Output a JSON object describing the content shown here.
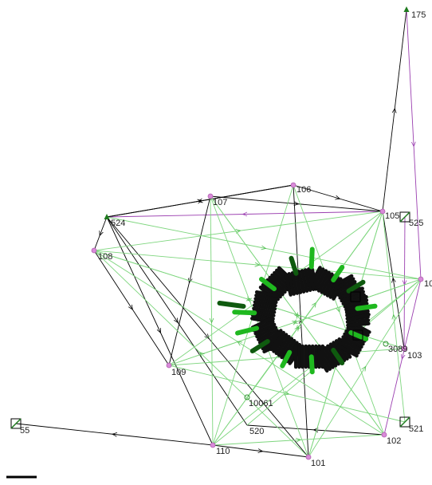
{
  "colors": {
    "background": "#ffffff",
    "edge_black": "#000000",
    "edge_green": "#7ed67e",
    "edge_purple": "#9b3fb0",
    "node_pink": "#d98ad9",
    "node_green": "#1e7a1e",
    "arrow_green": "#1fb81f",
    "arrow_dark_green": "#0f5a0f",
    "cluster_black": "#111111",
    "ring_green": "#2f8f2f"
  },
  "nodes": [
    {
      "id": "n175",
      "label": "175",
      "kind": "green"
    },
    {
      "id": "n106",
      "label": "106",
      "kind": "pink"
    },
    {
      "id": "n107",
      "label": "107",
      "kind": "pink"
    },
    {
      "id": "n105",
      "label": "105",
      "kind": "pink"
    },
    {
      "id": "n525",
      "label": "525",
      "kind": "box"
    },
    {
      "id": "n524",
      "label": "524",
      "kind": "green"
    },
    {
      "id": "n108",
      "label": "108",
      "kind": "pink"
    },
    {
      "id": "n10",
      "label": "10",
      "kind": "pink"
    },
    {
      "id": "n103",
      "label": "103",
      "kind": "pink"
    },
    {
      "id": "n3089",
      "label": "3089",
      "kind": "ring"
    },
    {
      "id": "n109",
      "label": "109",
      "kind": "pink"
    },
    {
      "id": "n10061",
      "label": "10061",
      "kind": "ring"
    },
    {
      "id": "n520",
      "label": "520",
      "kind": "plain"
    },
    {
      "id": "n110",
      "label": "110",
      "kind": "pink"
    },
    {
      "id": "n101",
      "label": "101",
      "kind": "pink"
    },
    {
      "id": "n102",
      "label": "102",
      "kind": "pink"
    },
    {
      "id": "n521",
      "label": "521",
      "kind": "box"
    },
    {
      "id": "n55",
      "label": "55",
      "kind": "box"
    }
  ],
  "edges": [
    {
      "from": "n524",
      "to": "n106",
      "color": "black"
    },
    {
      "from": "n106",
      "to": "n105",
      "color": "black"
    },
    {
      "from": "n105",
      "to": "n175",
      "color": "black"
    },
    {
      "from": "n175",
      "to": "n10",
      "color": "purple"
    },
    {
      "from": "n10",
      "to": "n102",
      "color": "purple"
    },
    {
      "from": "n525",
      "to": "n103",
      "color": "purple"
    },
    {
      "from": "n105",
      "to": "n524",
      "color": "purple"
    },
    {
      "from": "n524",
      "to": "n108",
      "color": "black"
    },
    {
      "from": "n108",
      "to": "n109",
      "color": "black"
    },
    {
      "from": "n524",
      "to": "n520",
      "color": "black"
    },
    {
      "from": "n524",
      "to": "n110",
      "color": "black"
    },
    {
      "from": "n524",
      "to": "n101",
      "color": "black"
    },
    {
      "from": "n110",
      "to": "n55",
      "color": "black"
    },
    {
      "from": "n110",
      "to": "n101",
      "color": "black"
    },
    {
      "from": "n101",
      "to": "n106",
      "color": "black"
    },
    {
      "from": "n106",
      "to": "n524",
      "color": "black"
    },
    {
      "from": "n107",
      "to": "n109",
      "color": "black"
    },
    {
      "from": "n103",
      "to": "n105",
      "color": "black"
    },
    {
      "from": "n102",
      "to": "n520",
      "color": "black"
    },
    {
      "from": "n107",
      "to": "n105",
      "color": "black"
    },
    {
      "from": "n108",
      "to": "n10",
      "color": "green"
    },
    {
      "from": "n108",
      "to": "n105",
      "color": "green"
    },
    {
      "from": "n108",
      "to": "n103",
      "color": "green"
    },
    {
      "from": "n107",
      "to": "n102",
      "color": "green"
    },
    {
      "from": "n107",
      "to": "n110",
      "color": "green"
    },
    {
      "from": "n107",
      "to": "n101",
      "color": "green"
    },
    {
      "from": "n106",
      "to": "n110",
      "color": "green"
    },
    {
      "from": "n106",
      "to": "n102",
      "color": "green"
    },
    {
      "from": "n105",
      "to": "n110",
      "color": "green"
    },
    {
      "from": "n105",
      "to": "n109",
      "color": "green"
    },
    {
      "from": "n105",
      "to": "n101",
      "color": "green"
    },
    {
      "from": "n10",
      "to": "n109",
      "color": "green"
    },
    {
      "from": "n10",
      "to": "n110",
      "color": "green"
    },
    {
      "from": "n103",
      "to": "n108",
      "color": "green"
    },
    {
      "from": "n103",
      "to": "n109",
      "color": "green"
    },
    {
      "from": "n109",
      "to": "n521",
      "color": "green"
    },
    {
      "from": "n109",
      "to": "n10",
      "color": "green"
    },
    {
      "from": "n110",
      "to": "n102",
      "color": "green"
    },
    {
      "from": "n101",
      "to": "n108",
      "color": "green"
    },
    {
      "from": "n101",
      "to": "n10",
      "color": "green"
    },
    {
      "from": "n102",
      "to": "n108",
      "color": "green"
    },
    {
      "from": "n102",
      "to": "n107",
      "color": "green"
    },
    {
      "from": "n524",
      "to": "n10",
      "color": "green"
    },
    {
      "from": "n521",
      "to": "n105",
      "color": "green"
    },
    {
      "from": "n10061",
      "to": "n105",
      "color": "green"
    },
    {
      "from": "n101",
      "to": "n105",
      "color": "green"
    },
    {
      "from": "n110",
      "to": "n105",
      "color": "green"
    },
    {
      "from": "n10",
      "to": "n520",
      "color": "green"
    }
  ],
  "scale_bar": {
    "label": ""
  }
}
